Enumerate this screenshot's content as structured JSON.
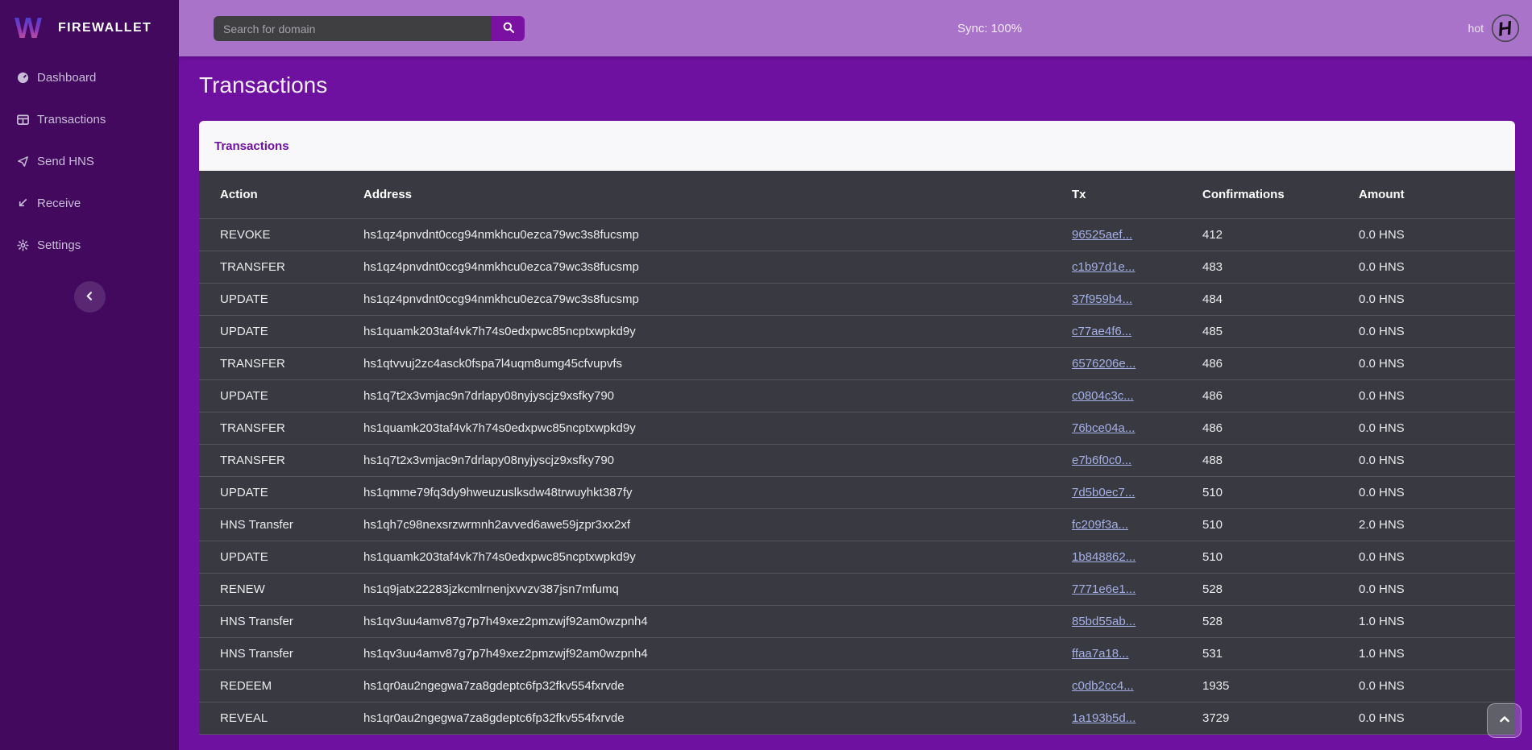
{
  "brand": {
    "name": "FIREWALLET",
    "logo_icon": "firewallet-w-logo"
  },
  "topbar": {
    "search": {
      "placeholder": "Search for domain",
      "value": "",
      "button_icon": "search-icon"
    },
    "sync_status": "Sync: 100%",
    "wallet_name": "hot",
    "wallet_icon": "handshake-logo-icon"
  },
  "sidebar": {
    "items": [
      {
        "label": "Dashboard",
        "icon": "dashboard-icon"
      },
      {
        "label": "Transactions",
        "icon": "transactions-icon"
      },
      {
        "label": "Send HNS",
        "icon": "send-icon"
      },
      {
        "label": "Receive",
        "icon": "receive-icon"
      },
      {
        "label": "Settings",
        "icon": "settings-icon"
      }
    ],
    "collapse_icon": "chevron-left-icon"
  },
  "page": {
    "title": "Transactions"
  },
  "card": {
    "title": "Transactions"
  },
  "table": {
    "columns": [
      "Action",
      "Address",
      "Tx",
      "Confirmations",
      "Amount"
    ],
    "rows": [
      {
        "action": "REVOKE",
        "address": "hs1qz4pnvdnt0ccg94nmkhcu0ezca79wc3s8fucsmp",
        "tx": "96525aef...",
        "confirmations": "412",
        "amount": "0.0 HNS"
      },
      {
        "action": "TRANSFER",
        "address": "hs1qz4pnvdnt0ccg94nmkhcu0ezca79wc3s8fucsmp",
        "tx": "c1b97d1e...",
        "confirmations": "483",
        "amount": "0.0 HNS"
      },
      {
        "action": "UPDATE",
        "address": "hs1qz4pnvdnt0ccg94nmkhcu0ezca79wc3s8fucsmp",
        "tx": "37f959b4...",
        "confirmations": "484",
        "amount": "0.0 HNS"
      },
      {
        "action": "UPDATE",
        "address": "hs1quamk203taf4vk7h74s0edxpwc85ncptxwpkd9y",
        "tx": "c77ae4f6...",
        "confirmations": "485",
        "amount": "0.0 HNS"
      },
      {
        "action": "TRANSFER",
        "address": "hs1qtvvuj2zc4asck0fspa7l4uqm8umg45cfvupvfs",
        "tx": "6576206e...",
        "confirmations": "486",
        "amount": "0.0 HNS"
      },
      {
        "action": "UPDATE",
        "address": "hs1q7t2x3vmjac9n7drlapy08nyjyscjz9xsfky790",
        "tx": "c0804c3c...",
        "confirmations": "486",
        "amount": "0.0 HNS"
      },
      {
        "action": "TRANSFER",
        "address": "hs1quamk203taf4vk7h74s0edxpwc85ncptxwpkd9y",
        "tx": "76bce04a...",
        "confirmations": "486",
        "amount": "0.0 HNS"
      },
      {
        "action": "TRANSFER",
        "address": "hs1q7t2x3vmjac9n7drlapy08nyjyscjz9xsfky790",
        "tx": "e7b6f0c0...",
        "confirmations": "488",
        "amount": "0.0 HNS"
      },
      {
        "action": "UPDATE",
        "address": "hs1qmme79fq3dy9hweuzuslksdw48trwuyhkt387fy",
        "tx": "7d5b0ec7...",
        "confirmations": "510",
        "amount": "0.0 HNS"
      },
      {
        "action": "HNS Transfer",
        "address": "hs1qh7c98nexsrzwrmnh2avved6awe59jzpr3xx2xf",
        "tx": "fc209f3a...",
        "confirmations": "510",
        "amount": "2.0 HNS"
      },
      {
        "action": "UPDATE",
        "address": "hs1quamk203taf4vk7h74s0edxpwc85ncptxwpkd9y",
        "tx": "1b848862...",
        "confirmations": "510",
        "amount": "0.0 HNS"
      },
      {
        "action": "RENEW",
        "address": "hs1q9jatx22283jzkcmlrnenjxvvzv387jsn7mfumq",
        "tx": "7771e6e1...",
        "confirmations": "528",
        "amount": "0.0 HNS"
      },
      {
        "action": "HNS Transfer",
        "address": "hs1qv3uu4amv87g7p7h49xez2pmzwjf92am0wzpnh4",
        "tx": "85bd55ab...",
        "confirmations": "528",
        "amount": "1.0 HNS"
      },
      {
        "action": "HNS Transfer",
        "address": "hs1qv3uu4amv87g7p7h49xez2pmzwjf92am0wzpnh4",
        "tx": "ffaa7a18...",
        "confirmations": "531",
        "amount": "1.0 HNS"
      },
      {
        "action": "REDEEM",
        "address": "hs1qr0au2ngegwa7za8gdeptc6fp32fkv554fxrvde",
        "tx": "c0db2cc4...",
        "confirmations": "1935",
        "amount": "0.0 HNS"
      },
      {
        "action": "REVEAL",
        "address": "hs1qr0au2ngegwa7za8gdeptc6fp32fkv554fxrvde",
        "tx": "1a193b5d...",
        "confirmations": "3729",
        "amount": "0.0 HNS"
      }
    ]
  },
  "scroll_top_icon": "chevron-up-icon",
  "colors": {
    "sidebar_bg": "#42095e",
    "topbar_bg": "#a873c8",
    "content_bg": "#6e10a0",
    "card_header_bg": "#f8f8fb",
    "card_header_text": "#6f10a2",
    "table_bg": "#393a41",
    "table_divider": "#55565f",
    "tx_link": "#a4afe4",
    "search_btn_bg": "#7a11a3",
    "logo_gradient_top": "#2b3fe0",
    "logo_gradient_bottom": "#e25590"
  }
}
